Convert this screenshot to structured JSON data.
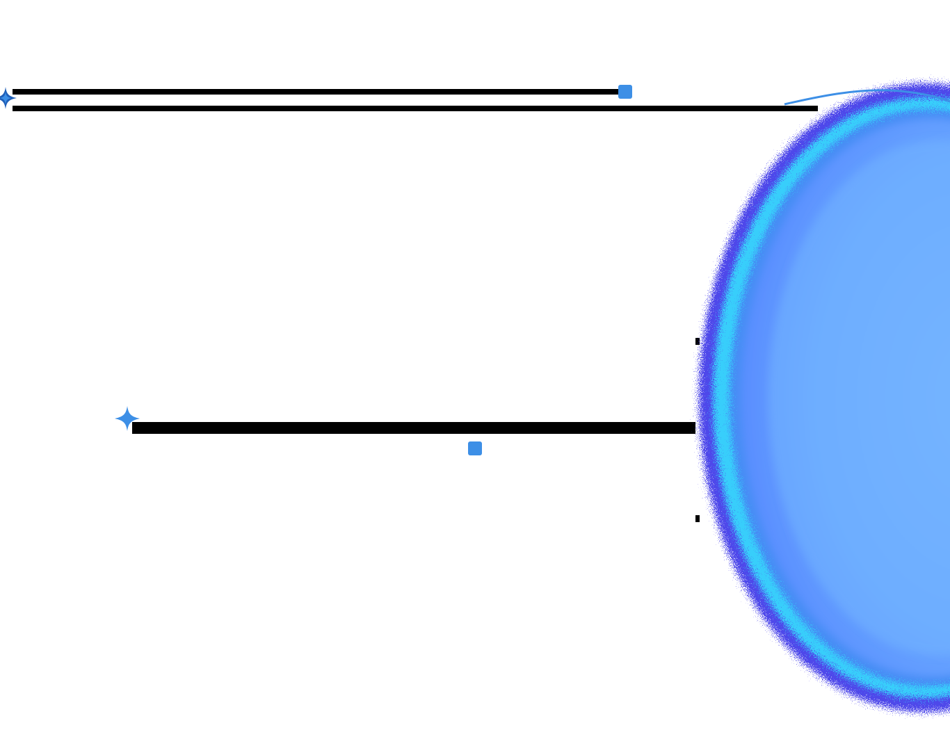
{
  "colors": {
    "background": "#ffffff",
    "line": "#000000",
    "accent": "#3d8fe6",
    "accent_dark": "#1f5fb8",
    "orb_core": "#6fb0ff",
    "orb_edge_violet": "#3a34e8",
    "orb_edge_cyan": "#35e6ff"
  },
  "icons": {
    "sparkle_top": "four-point-star",
    "sparkle_mid": "four-point-star",
    "marker_top": "square",
    "marker_mid": "square"
  }
}
